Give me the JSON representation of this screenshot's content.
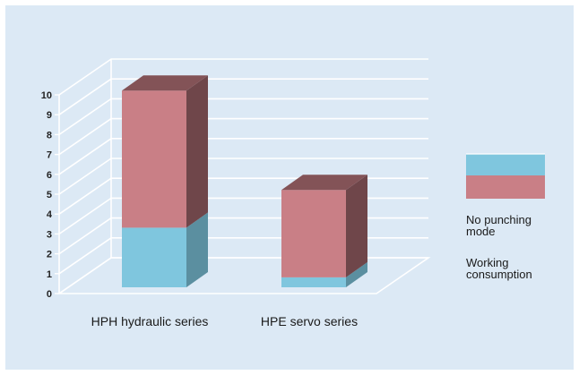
{
  "chart_data": {
    "type": "bar",
    "stacked": true,
    "three_d": true,
    "categories": [
      "HPH hydraulic series",
      "HPE servo series"
    ],
    "series": [
      {
        "name": "No punching mode",
        "values": [
          3.0,
          0.5
        ],
        "color": "#7fc6de"
      },
      {
        "name": "Working consumption",
        "values": [
          6.9,
          4.4
        ],
        "color": "#c97f86"
      }
    ],
    "title": "",
    "xlabel": "",
    "ylabel": "",
    "ylim": [
      0,
      10
    ],
    "yticks": [
      "0",
      "1",
      "2",
      "3",
      "4",
      "5",
      "6",
      "7",
      "8",
      "9",
      "10"
    ],
    "grid": true,
    "legend_placement": "right",
    "background_color": "#dce9f5"
  }
}
